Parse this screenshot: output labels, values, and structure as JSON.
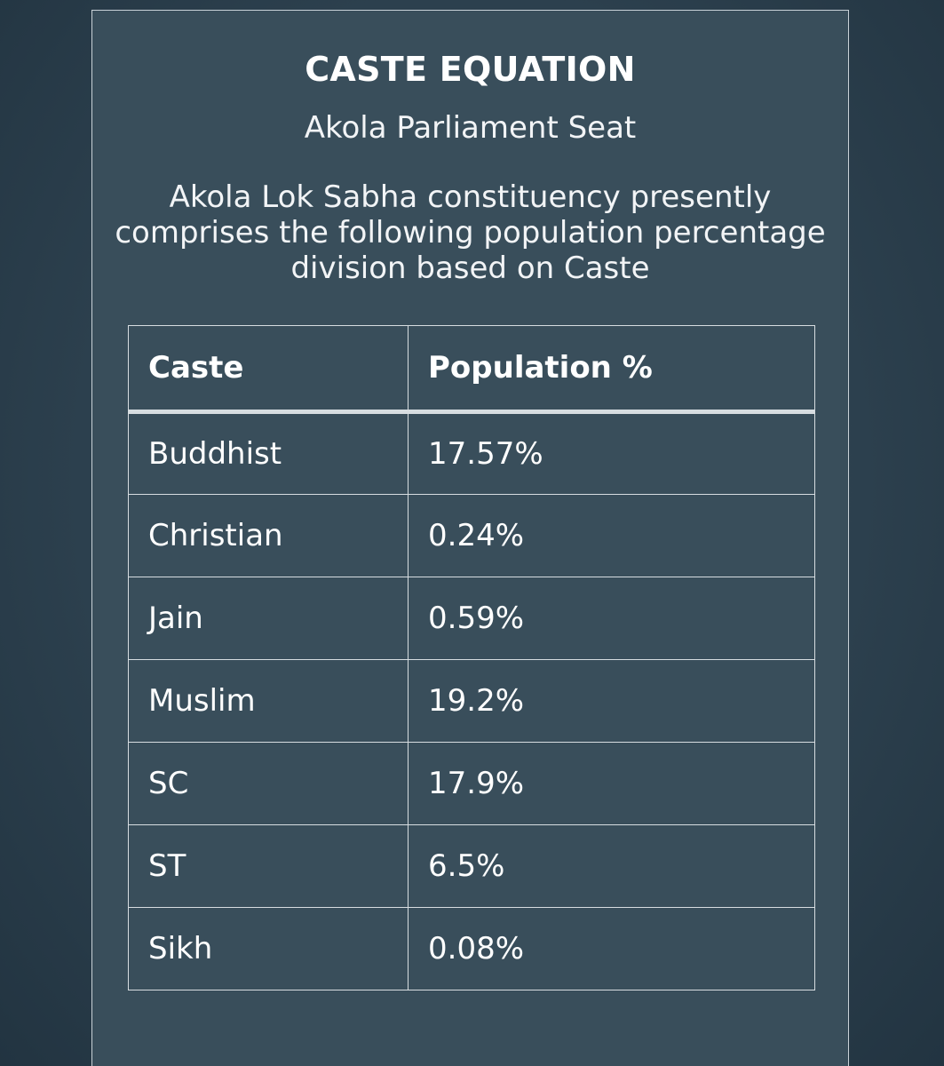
{
  "header": {
    "title": "CASTE EQUATION",
    "subtitle": "Akola Parliament Seat",
    "description": "Akola Lok Sabha constituency presently comprises the following population percentage division based on Caste"
  },
  "table": {
    "columns": [
      "Caste",
      "Population %"
    ],
    "rows": [
      {
        "caste": "Buddhist",
        "population": "17.57%"
      },
      {
        "caste": "Christian",
        "population": "0.24%"
      },
      {
        "caste": "Jain",
        "population": "0.59%"
      },
      {
        "caste": "Muslim",
        "population": "19.2%"
      },
      {
        "caste": "SC",
        "population": "17.9%"
      },
      {
        "caste": "ST",
        "population": "6.5%"
      },
      {
        "caste": "Sikh",
        "population": "0.08%"
      }
    ]
  }
}
